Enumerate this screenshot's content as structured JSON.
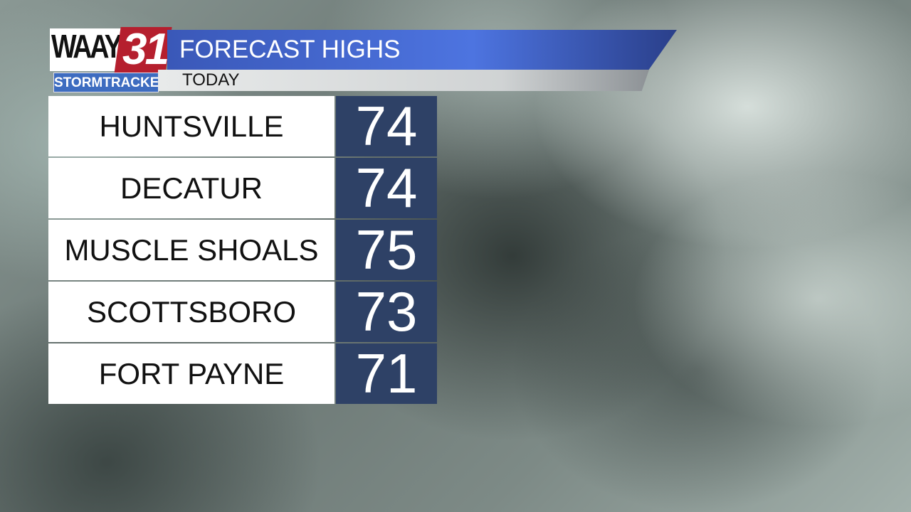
{
  "logo": {
    "station": "WAAY",
    "channel": "31",
    "brand": "STORMTRACKER"
  },
  "header": {
    "title": "FORECAST HIGHS",
    "subtitle": "TODAY"
  },
  "colors": {
    "title_bar": "#4d74e0",
    "value_cell": "#2e4166",
    "logo_red": "#b51f2e"
  },
  "forecast": [
    {
      "city": "HUNTSVILLE",
      "high": "74"
    },
    {
      "city": "DECATUR",
      "high": "74"
    },
    {
      "city": "MUSCLE SHOALS",
      "high": "75"
    },
    {
      "city": "SCOTTSBORO",
      "high": "73"
    },
    {
      "city": "FORT PAYNE",
      "high": "71"
    }
  ]
}
